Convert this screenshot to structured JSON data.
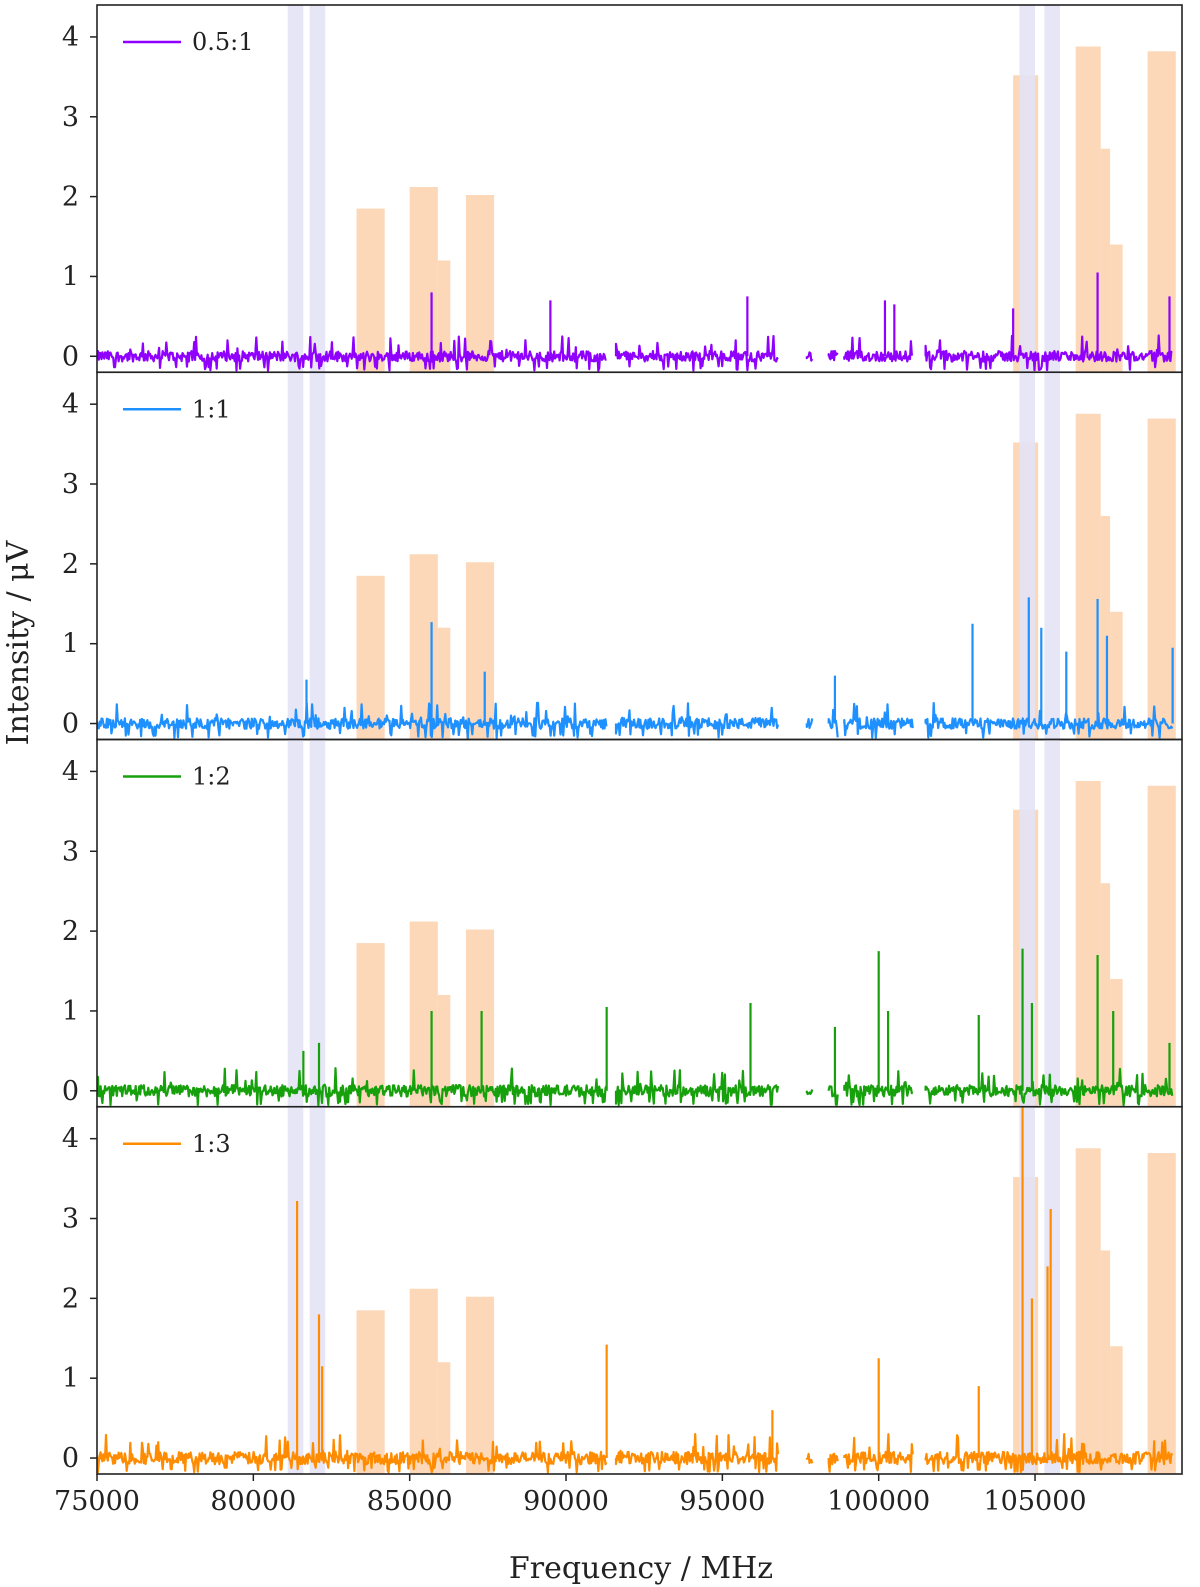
{
  "chart_data": {
    "type": "line",
    "xlabel": "Frequency / MHz",
    "ylabel": "Intensity / μV",
    "xlim": [
      75000,
      109700
    ],
    "ylim": [
      -0.2,
      4.4
    ],
    "x_ticks": [
      "75000",
      "80000",
      "85000",
      "90000",
      "95000",
      "100000",
      "105000"
    ],
    "y_ticks": [
      "0",
      "1",
      "2",
      "3",
      "4"
    ],
    "grid": false,
    "legend_position": "top-left",
    "measured_ranges_mhz": [
      [
        75000,
        91300
      ],
      [
        91600,
        96800
      ],
      [
        97700,
        97900
      ],
      [
        98400,
        98700
      ],
      [
        98900,
        101100
      ],
      [
        101500,
        109400
      ]
    ],
    "highlight_blue_bands_mhz": [
      [
        81100,
        81600
      ],
      [
        81800,
        82300
      ],
      [
        104500,
        105000
      ],
      [
        105300,
        105800
      ]
    ],
    "highlight_orange_bands": [
      {
        "x": [
          83300,
          84200
        ],
        "height": 1.85
      },
      {
        "x": [
          85000,
          85900
        ],
        "height": 2.12
      },
      {
        "x": [
          85900,
          86300
        ],
        "height": 1.2
      },
      {
        "x": [
          86800,
          87700
        ],
        "height": 2.02
      },
      {
        "x": [
          104300,
          105100
        ],
        "height": 3.52
      },
      {
        "x": [
          106300,
          107100
        ],
        "height": 3.88
      },
      {
        "x": [
          107100,
          107400
        ],
        "height": 2.6
      },
      {
        "x": [
          107400,
          107800
        ],
        "height": 1.4
      },
      {
        "x": [
          108600,
          109500
        ],
        "height": 3.82
      }
    ],
    "series": [
      {
        "name": "0.5:1",
        "color": "#8f00ff",
        "baseline_noise": 0.12,
        "peaks": [
          [
            85700,
            0.8
          ],
          [
            89500,
            0.7
          ],
          [
            95800,
            0.75
          ],
          [
            100200,
            0.7
          ],
          [
            100500,
            0.65
          ],
          [
            104300,
            0.6
          ],
          [
            107000,
            1.05
          ],
          [
            109300,
            0.75
          ]
        ]
      },
      {
        "name": "1:1",
        "color": "#1e90ff",
        "baseline_noise": 0.12,
        "peaks": [
          [
            81700,
            0.55
          ],
          [
            85700,
            1.27
          ],
          [
            87400,
            0.65
          ],
          [
            98600,
            0.6
          ],
          [
            103000,
            1.25
          ],
          [
            104800,
            1.58
          ],
          [
            105200,
            1.2
          ],
          [
            106000,
            0.9
          ],
          [
            107000,
            1.56
          ],
          [
            107300,
            1.1
          ],
          [
            109400,
            0.95
          ]
        ]
      },
      {
        "name": "1:2",
        "color": "#16a00b",
        "baseline_noise": 0.13,
        "peaks": [
          [
            81600,
            0.5
          ],
          [
            82100,
            0.6
          ],
          [
            85700,
            1.0
          ],
          [
            87300,
            1.0
          ],
          [
            91300,
            1.05
          ],
          [
            95900,
            1.1
          ],
          [
            98600,
            0.8
          ],
          [
            100000,
            1.75
          ],
          [
            100300,
            1.0
          ],
          [
            103200,
            0.95
          ],
          [
            104600,
            1.78
          ],
          [
            104900,
            1.1
          ],
          [
            107000,
            1.7
          ],
          [
            107500,
            1.0
          ],
          [
            109300,
            0.6
          ]
        ]
      },
      {
        "name": "1:3",
        "color": "#ff8c00",
        "baseline_noise": 0.14,
        "peaks": [
          [
            81400,
            3.22
          ],
          [
            82100,
            1.8
          ],
          [
            82200,
            1.15
          ],
          [
            91300,
            1.42
          ],
          [
            96600,
            0.6
          ],
          [
            100000,
            1.25
          ],
          [
            103200,
            0.9
          ],
          [
            104600,
            4.4
          ],
          [
            104900,
            2.0
          ],
          [
            105500,
            3.12
          ],
          [
            105400,
            2.4
          ]
        ]
      }
    ]
  }
}
